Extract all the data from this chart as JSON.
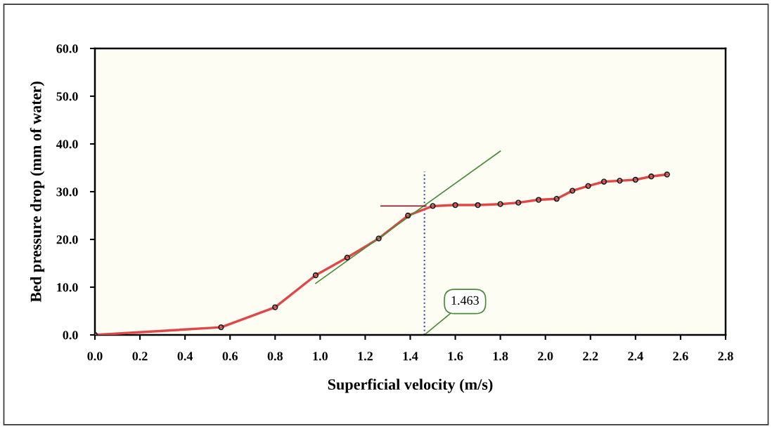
{
  "chart_data": {
    "type": "line",
    "xlabel": "Superficial velocity (m/s)",
    "ylabel": "Bed pressure drop (mm of water)",
    "xlim": [
      0,
      2.8
    ],
    "xticks": [
      {
        "value": 0,
        "label": "0.0"
      },
      0.2,
      0.4,
      0.6,
      0.8,
      {
        "value": 1,
        "label": "1.0"
      },
      1.2,
      1.4,
      1.6,
      1.8,
      {
        "value": 2,
        "label": "2.0"
      },
      2.2,
      2.4,
      2.6,
      2.8
    ],
    "ylim": [
      0,
      60
    ],
    "yticks": [
      {
        "value": 0,
        "label": "0.0"
      },
      {
        "value": 10,
        "label": "10.0"
      },
      {
        "value": 20,
        "label": "20.0"
      },
      {
        "value": 30,
        "label": "30.0"
      },
      {
        "value": 40,
        "label": "40.0"
      },
      {
        "value": 50,
        "label": "50.0"
      },
      {
        "value": 60,
        "label": "60.0"
      }
    ],
    "grid": false,
    "marker": "circle",
    "series": [
      {
        "color": "#e04848",
        "x": [
          0,
          0.56,
          0.8,
          0.98,
          1.12,
          1.26,
          1.39,
          1.5,
          1.6,
          1.7,
          1.8,
          1.88,
          1.97,
          2.05,
          2.12,
          2.19,
          2.26,
          2.33,
          2.4,
          2.47,
          2.54
        ],
        "values": [
          0,
          1.6,
          5.8,
          12.5,
          16.2,
          20.2,
          25.0,
          27.0,
          27.2,
          27.2,
          27.4,
          27.7,
          28.3,
          28.5,
          30.2,
          31.2,
          32.1,
          32.3,
          32.5,
          33.2,
          33.6
        ]
      },
      {
        "color": "#4a8a3a",
        "marker": "none",
        "x": [
          0.98,
          1.8
        ],
        "values": [
          10.8,
          38.5
        ]
      },
      {
        "color": "#8a2030",
        "marker": "none",
        "x": [
          1.27,
          1.47
        ],
        "values": [
          27.0,
          27.0
        ]
      }
    ],
    "ref_lines": [
      {
        "axis": "x",
        "value": 1.463,
        "color": "#3050a0",
        "line_style": "dotted"
      }
    ],
    "annotations": [
      {
        "text": "1.463",
        "x": 1.463,
        "y": 0
      }
    ]
  }
}
